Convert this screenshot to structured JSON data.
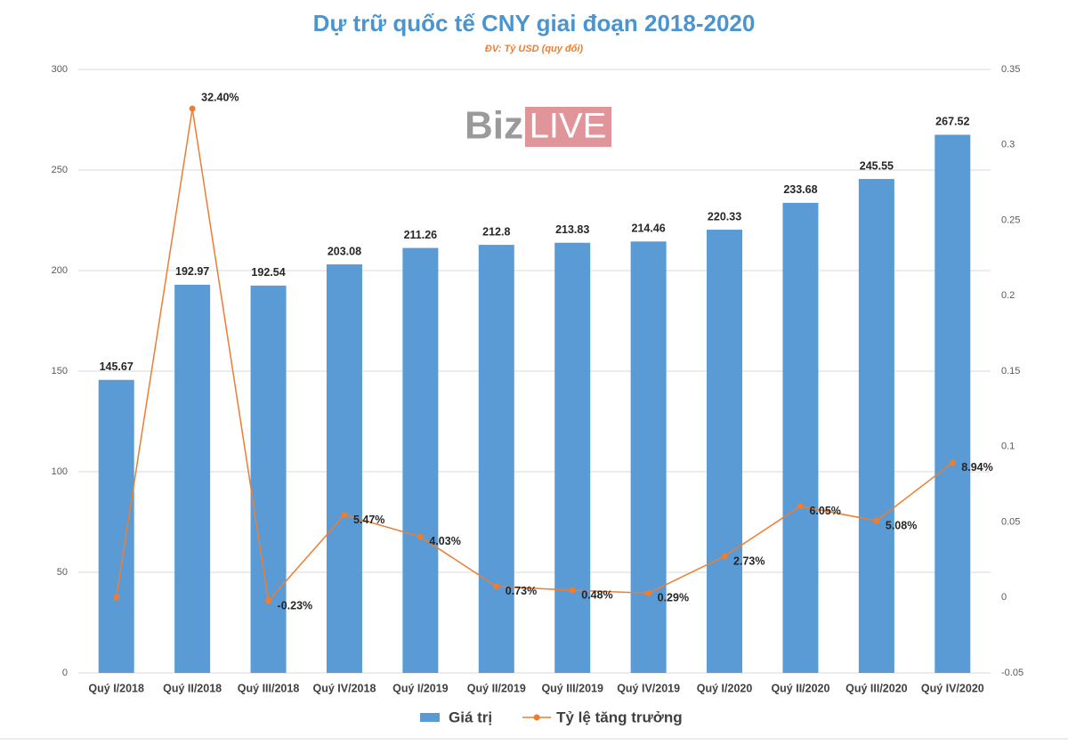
{
  "logo": {
    "left": "Biz",
    "right": "LIVE"
  },
  "chart_data": {
    "type": "bar-line",
    "title": "Dự trữ quốc tế CNY giai đoạn 2018-2020",
    "subtitle": "ĐV: Tỷ USD (quy đổi)",
    "categories": [
      "Quý I/2018",
      "Quý II/2018",
      "Quý III/2018",
      "Quý IV/2018",
      "Quý I/2019",
      "Quý II/2019",
      "Quý III/2019",
      "Quý IV/2019",
      "Quý I/2020",
      "Quý II/2020",
      "Quý III/2020",
      "Quý IV/2020"
    ],
    "series": [
      {
        "name": "Giá trị",
        "color": "#5b9bd5",
        "kind": "bar",
        "values": [
          145.67,
          192.97,
          192.54,
          203.08,
          211.26,
          212.8,
          213.83,
          214.46,
          220.33,
          233.68,
          245.55,
          267.52
        ]
      },
      {
        "name": "Tỷ lệ tăng trưởng",
        "color": "#ed7d31",
        "kind": "line",
        "axis": "y2",
        "values": [
          0,
          0.324,
          -0.0023,
          0.0547,
          0.0403,
          0.0073,
          0.0048,
          0.0029,
          0.0273,
          0.0605,
          0.0508,
          0.0894
        ],
        "value_labels": [
          null,
          "32.40%",
          "-0.23%",
          "5.47%",
          "4.03%",
          "0.73%",
          "0.48%",
          "0.29%",
          "2.73%",
          "6.05%",
          "5.08%",
          "8.94%"
        ]
      }
    ],
    "ylim": [
      0,
      300
    ],
    "yticks": [
      0,
      50,
      100,
      150,
      200,
      250,
      300
    ],
    "y2lim": [
      -0.05,
      0.35
    ],
    "y2ticks": [
      -0.05,
      0,
      0.05,
      0.1,
      0.15,
      0.2,
      0.25,
      0.3,
      0.35
    ],
    "grid": true,
    "legend": "bottom"
  }
}
